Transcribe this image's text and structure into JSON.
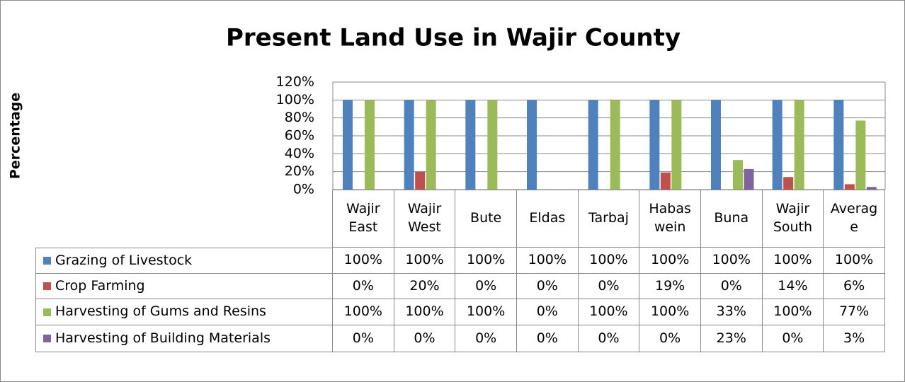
{
  "chart_data": {
    "type": "bar",
    "title": "Present Land Use in Wajir County",
    "y_label": "Percentage",
    "categories": [
      "Wajir East",
      "Wajir West",
      "Bute",
      "Eldas",
      "Tarbaj",
      "Habaswein",
      "Buna",
      "Wajir South",
      "Average"
    ],
    "series": [
      {
        "name": "Grazing of Livestock",
        "color": "#4f81bd",
        "values": [
          100,
          100,
          100,
          100,
          100,
          100,
          100,
          100,
          100
        ],
        "value_labels": [
          "100%",
          "100%",
          "100%",
          "100%",
          "100%",
          "100%",
          "100%",
          "100%",
          "100%"
        ]
      },
      {
        "name": "Crop Farming",
        "color": "#c0504d",
        "values": [
          0,
          20,
          0,
          0,
          0,
          19,
          0,
          14,
          6
        ],
        "value_labels": [
          "0%",
          "20%",
          "0%",
          "0%",
          "0%",
          "19%",
          "0%",
          "14%",
          "6%"
        ]
      },
      {
        "name": "Harvesting of Gums and Resins",
        "color": "#9bbb59",
        "values": [
          100,
          100,
          100,
          0,
          100,
          100,
          33,
          100,
          77
        ],
        "value_labels": [
          "100%",
          "100%",
          "100%",
          "0%",
          "100%",
          "100%",
          "33%",
          "100%",
          "77%"
        ]
      },
      {
        "name": "Harvesting of Building Materials",
        "color": "#8064a2",
        "values": [
          0,
          0,
          0,
          0,
          0,
          0,
          23,
          0,
          3
        ],
        "value_labels": [
          "0%",
          "0%",
          "0%",
          "0%",
          "0%",
          "0%",
          "23%",
          "0%",
          "3%"
        ]
      }
    ],
    "ylim": [
      0,
      120
    ],
    "yticks": [
      {
        "value": 0,
        "label": "0%"
      },
      {
        "value": 20,
        "label": "20%"
      },
      {
        "value": 40,
        "label": "40%"
      },
      {
        "value": 60,
        "label": "60%"
      },
      {
        "value": 80,
        "label": "80%"
      },
      {
        "value": 100,
        "label": "100%"
      },
      {
        "value": 120,
        "label": "120%"
      }
    ],
    "grid": true
  }
}
